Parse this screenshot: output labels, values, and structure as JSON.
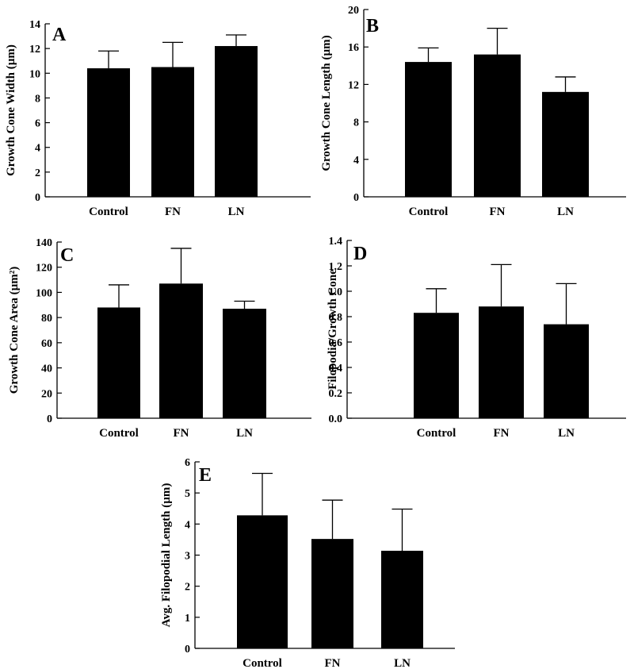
{
  "chart_data": [
    {
      "type": "bar",
      "panel": "A",
      "ylabel": "Growth Cone Width (µm)",
      "ylim": [
        0,
        14
      ],
      "yticks": [
        "0",
        "2",
        "4",
        "6",
        "8",
        "10",
        "12",
        "14"
      ],
      "categories": [
        "Control",
        "FN",
        "LN"
      ],
      "values": [
        10.4,
        10.5,
        12.2
      ],
      "errors": [
        1.4,
        2.0,
        0.9
      ]
    },
    {
      "type": "bar",
      "panel": "B",
      "ylabel": "Growth Cone Length (µm)",
      "ylim": [
        0,
        20
      ],
      "yticks": [
        "0",
        "4",
        "8",
        "12",
        "16",
        "20"
      ],
      "categories": [
        "Control",
        "FN",
        "LN"
      ],
      "values": [
        14.4,
        15.2,
        11.2
      ],
      "errors": [
        1.5,
        2.8,
        1.6
      ]
    },
    {
      "type": "bar",
      "panel": "C",
      "ylabel": "Growth Cone Area (µm²)",
      "ylim": [
        0,
        140
      ],
      "yticks": [
        "0",
        "20",
        "40",
        "60",
        "80",
        "100",
        "120",
        "140"
      ],
      "categories": [
        "Control",
        "FN",
        "LN"
      ],
      "values": [
        88,
        107,
        87
      ],
      "errors": [
        18,
        28,
        6
      ]
    },
    {
      "type": "bar",
      "panel": "D",
      "ylabel": "Filopodia/Growth Cone",
      "ylim": [
        0,
        1.4
      ],
      "yticks": [
        "0.0",
        "0.2",
        "0.4",
        "0.6",
        "0.8",
        "1.0",
        "1.2",
        "1.4"
      ],
      "categories": [
        "Control",
        "FN",
        "LN"
      ],
      "values": [
        0.83,
        0.88,
        0.74
      ],
      "errors": [
        0.19,
        0.33,
        0.32
      ]
    },
    {
      "type": "bar",
      "panel": "E",
      "ylabel": "Avg. Filopodial Length (µm)",
      "ylim": [
        0,
        6
      ],
      "yticks": [
        "0",
        "1",
        "2",
        "3",
        "4",
        "5",
        "6"
      ],
      "categories": [
        "Control",
        "FN",
        "LN"
      ],
      "values": [
        4.28,
        3.52,
        3.14
      ],
      "errors": [
        1.35,
        1.25,
        1.34
      ]
    }
  ],
  "colors": {
    "bar": "#000000",
    "axis": "#000000"
  }
}
